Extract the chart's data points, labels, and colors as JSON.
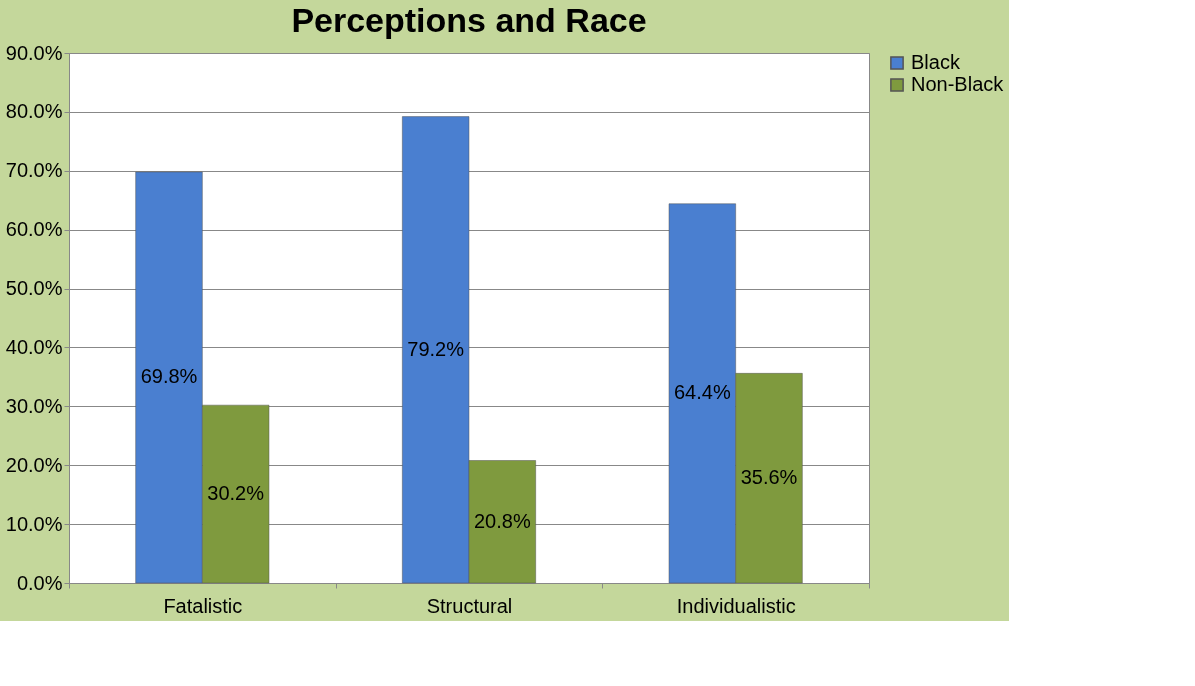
{
  "chart_data": {
    "type": "bar",
    "title": "Perceptions and Race",
    "categories": [
      "Fatalistic",
      "Structural",
      "Individualistic"
    ],
    "series": [
      {
        "name": "Black",
        "color": "#4a7fd0",
        "values": [
          69.8,
          79.2,
          64.4
        ],
        "value_labels": [
          "69.8%",
          "79.2%",
          "64.4%"
        ]
      },
      {
        "name": "Non-Black",
        "color": "#7f9a3e",
        "values": [
          30.2,
          20.8,
          35.6
        ],
        "value_labels": [
          "30.2%",
          "20.8%",
          "35.6%"
        ]
      }
    ],
    "ylim": [
      0,
      90
    ],
    "yticks": [
      {
        "value": 0,
        "label": "0.0%"
      },
      {
        "value": 10,
        "label": "10.0%"
      },
      {
        "value": 20,
        "label": "20.0%"
      },
      {
        "value": 30,
        "label": "30.0%"
      },
      {
        "value": 40,
        "label": "40.0%"
      },
      {
        "value": 50,
        "label": "50.0%"
      },
      {
        "value": 60,
        "label": "60.0%"
      },
      {
        "value": 70,
        "label": "70.0%"
      },
      {
        "value": 80,
        "label": "80.0%"
      },
      {
        "value": 90,
        "label": "90.0%"
      }
    ],
    "grid": "y",
    "legend": "right"
  }
}
